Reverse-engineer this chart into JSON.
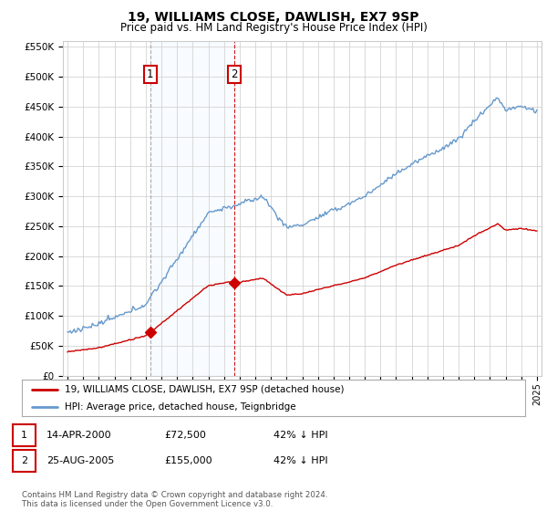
{
  "title": "19, WILLIAMS CLOSE, DAWLISH, EX7 9SP",
  "subtitle": "Price paid vs. HM Land Registry's House Price Index (HPI)",
  "sale1_date": 2000.29,
  "sale1_price": 72500,
  "sale2_date": 2005.65,
  "sale2_price": 155000,
  "legend_line1": "19, WILLIAMS CLOSE, DAWLISH, EX7 9SP (detached house)",
  "legend_line2": "HPI: Average price, detached house, Teignbridge",
  "table_row1": [
    "1",
    "14-APR-2000",
    "£72,500",
    "42% ↓ HPI"
  ],
  "table_row2": [
    "2",
    "25-AUG-2005",
    "£155,000",
    "42% ↓ HPI"
  ],
  "footnote": "Contains HM Land Registry data © Crown copyright and database right 2024.\nThis data is licensed under the Open Government Licence v3.0.",
  "line_red_color": "#cc0000",
  "line_blue_color": "#6699cc",
  "background_color": "#ffffff",
  "grid_color": "#cccccc",
  "shade_color": "#ddeeff",
  "ylim_max": 560000,
  "xmin": 1994.7,
  "xmax": 2025.3
}
